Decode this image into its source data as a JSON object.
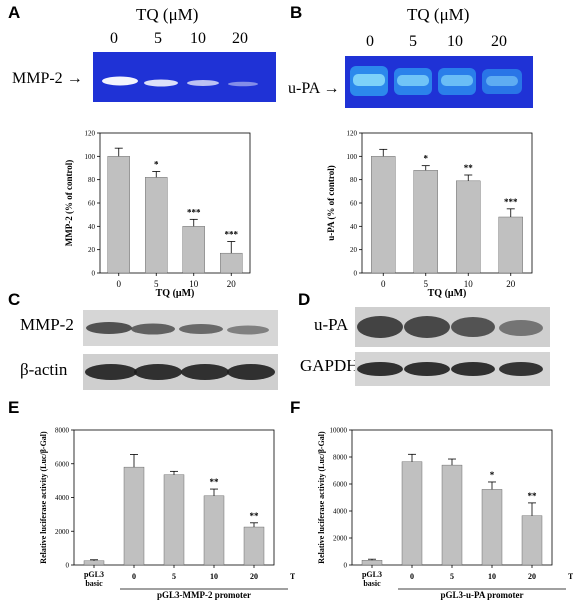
{
  "panels": {
    "A": {
      "letter": "A",
      "gel_title": "TQ (μM)",
      "lanes": [
        "0",
        "5",
        "10",
        "20"
      ],
      "band_label": "MMP-2",
      "gel_color": "#1f32d6",
      "band_color": "#ffffff"
    },
    "B": {
      "letter": "B",
      "gel_title": "TQ (μM)",
      "lanes": [
        "0",
        "5",
        "10",
        "20"
      ],
      "band_label": "u-PA",
      "gel_color": "#1f32d6",
      "band_color": "#37d1ff"
    },
    "C": {
      "letter": "C",
      "blot_labels": [
        "MMP-2",
        "β-actin"
      ]
    },
    "D": {
      "letter": "D",
      "blot_labels": [
        "u-PA",
        "GAPDH"
      ]
    },
    "E": {
      "letter": "E"
    },
    "F": {
      "letter": "F"
    }
  },
  "chart_data": [
    {
      "id": "A",
      "type": "bar",
      "categories": [
        "0",
        "5",
        "10",
        "20"
      ],
      "values": [
        100,
        82,
        40,
        17
      ],
      "errors": [
        7,
        5,
        6,
        10
      ],
      "significance": [
        "",
        "*",
        "***",
        "***"
      ],
      "ylabel": "MMP-2 (% of control)",
      "xlabel": "TQ (μM)",
      "ylim": [
        0,
        120
      ],
      "yticks": [
        "0",
        "20",
        "40",
        "60",
        "80",
        "100",
        "120"
      ],
      "bar_color": "#c0c0c0"
    },
    {
      "id": "B",
      "type": "bar",
      "categories": [
        "0",
        "5",
        "10",
        "20"
      ],
      "values": [
        100,
        88,
        79,
        48
      ],
      "errors": [
        6,
        4,
        5,
        7
      ],
      "significance": [
        "",
        "*",
        "**",
        "***"
      ],
      "ylabel": "u-PA (% of control)",
      "xlabel": "TQ (μM)",
      "ylim": [
        0,
        120
      ],
      "yticks": [
        "0",
        "20",
        "40",
        "60",
        "80",
        "100",
        "120"
      ],
      "bar_color": "#c0c0c0"
    },
    {
      "id": "E",
      "type": "bar",
      "categories": [
        "pGL3 basic",
        "0",
        "5",
        "10",
        "20"
      ],
      "values": [
        250,
        5800,
        5350,
        4100,
        2250
      ],
      "errors": [
        60,
        750,
        200,
        400,
        250
      ],
      "significance": [
        "",
        "",
        "",
        "**",
        "**"
      ],
      "ylabel": "Relative luciferase activity (Luc/β-Gal)",
      "xlabel": "pGL3-MMP-2 promoter",
      "unit_label": "TQ (μM)",
      "ylim": [
        0,
        8000
      ],
      "yticks": [
        "0",
        "2000",
        "4000",
        "6000",
        "8000"
      ],
      "bar_color": "#c0c0c0"
    },
    {
      "id": "F",
      "type": "bar",
      "categories": [
        "pGL3 basic",
        "0",
        "5",
        "10",
        "20"
      ],
      "values": [
        350,
        7650,
        7400,
        5600,
        3650
      ],
      "errors": [
        80,
        550,
        450,
        550,
        950
      ],
      "significance": [
        "",
        "",
        "",
        "*",
        "**"
      ],
      "ylabel": "Relative luciferase activity (Luc/β-Gal)",
      "xlabel": "pGL3-u-PA promoter",
      "unit_label": "TQ (μM)",
      "ylim": [
        0,
        10000
      ],
      "yticks": [
        "0",
        "2000",
        "4000",
        "6000",
        "8000",
        "10000"
      ],
      "bar_color": "#c0c0c0"
    }
  ]
}
